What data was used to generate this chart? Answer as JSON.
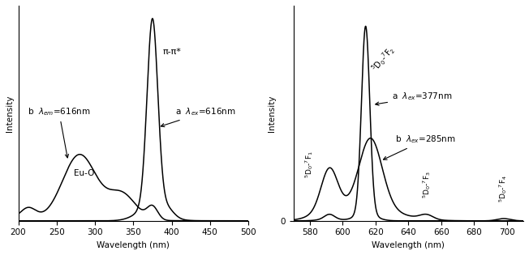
{
  "left": {
    "xlim": [
      200,
      500
    ],
    "ylim": [
      0,
      1.15
    ],
    "xlabel": "Wavelength (nm)",
    "ylabel": "Intensity",
    "xticks": [
      200,
      250,
      300,
      350,
      400,
      450,
      500
    ]
  },
  "right": {
    "xlim": [
      570,
      710
    ],
    "ylim": [
      0,
      1.15
    ],
    "xlabel": "Wavelength (nm)",
    "ylabel": "Intensity",
    "xticks": [
      580,
      600,
      620,
      640,
      660,
      680,
      700
    ]
  },
  "background": "#ffffff",
  "line_color": "#000000",
  "fontsize": 7.5
}
